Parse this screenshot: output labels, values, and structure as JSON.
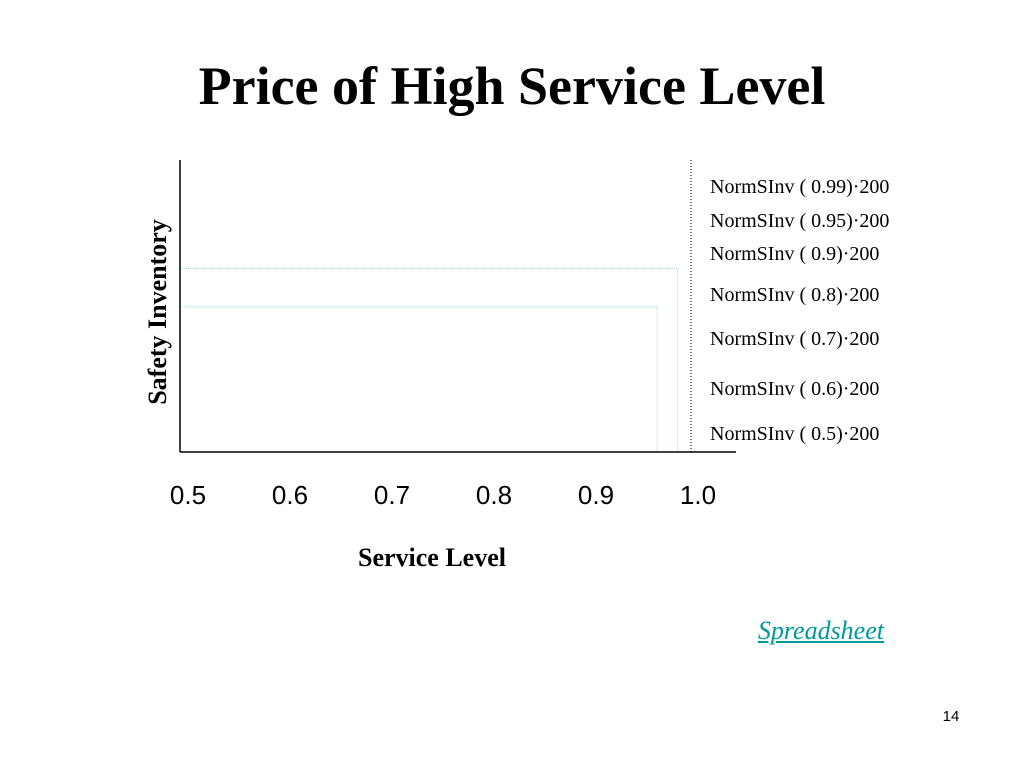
{
  "slide": {
    "title": "Price of High Service Level",
    "link_label": "Spreadsheet",
    "page_number": "14"
  },
  "colors": {
    "axis": "#000000",
    "guide_lines": "#a8d4d4",
    "reference_line": "#000000",
    "link": "#009999"
  },
  "chart_data": {
    "type": "line",
    "title": "Price of High Service Level",
    "xlabel": "Service Level",
    "ylabel": "Safety Inventory",
    "x_ticks": [
      "0.5",
      "0.6",
      "0.7",
      "0.8",
      "0.9",
      "1.0"
    ],
    "xlim": [
      0.5,
      1.0
    ],
    "y_levels": [
      {
        "label": "NormSInv ( 0.99)·200",
        "service_level": 0.99
      },
      {
        "label": "NormSInv ( 0.95)·200",
        "service_level": 0.95
      },
      {
        "label": "NormSInv ( 0.9)·200",
        "service_level": 0.9
      },
      {
        "label": "NormSInv ( 0.8)·200",
        "service_level": 0.8
      },
      {
        "label": "NormSInv ( 0.7)·200",
        "service_level": 0.7
      },
      {
        "label": "NormSInv ( 0.6)·200",
        "service_level": 0.6
      },
      {
        "label": "NormSInv ( 0.5)·200",
        "service_level": 0.5
      }
    ],
    "guide_points": [
      {
        "x": 0.98,
        "y": 0.95
      },
      {
        "x": 0.96,
        "y": 0.9
      }
    ],
    "reference_line_x": 1.0,
    "grid": false
  }
}
